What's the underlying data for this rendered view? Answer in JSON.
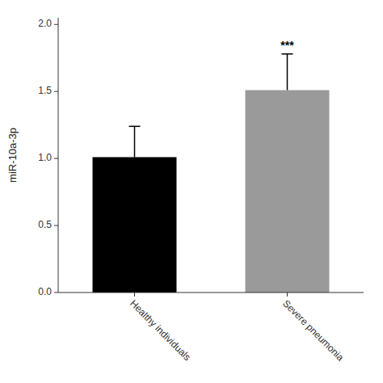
{
  "chart_data": {
    "type": "bar",
    "categories": [
      "Healthy individuals",
      "Severe pneumonia"
    ],
    "values": [
      1.01,
      1.51
    ],
    "errors": [
      0.23,
      0.27
    ],
    "colors": [
      "#000000",
      "#9a9a9a"
    ],
    "ylabel": "miR-10a-3p",
    "ylim": [
      0.0,
      2.05
    ],
    "yticks": [
      {
        "value": 0.0,
        "label": "0.0"
      },
      0.5,
      {
        "value": 1.0,
        "label": "1.0"
      },
      1.5,
      {
        "value": 2.0,
        "label": "2.0"
      }
    ],
    "significance": [
      null,
      "***"
    ],
    "grid": false
  }
}
